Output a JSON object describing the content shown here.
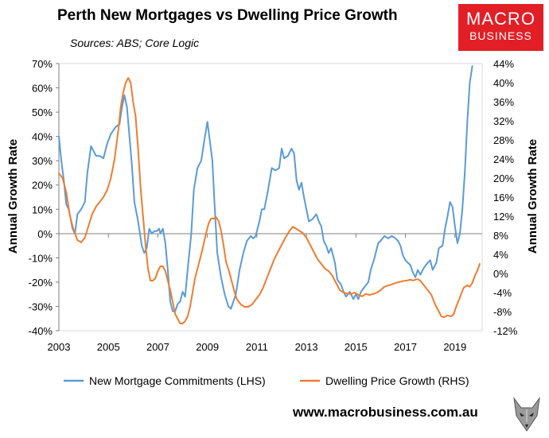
{
  "header": {
    "title": "Perth New Mortgages vs Dwelling Price Growth",
    "subtitle": "Sources: ABS; Core Logic"
  },
  "logo": {
    "top": "MACRO",
    "bottom": "BUSINESS",
    "color": "#e21f26"
  },
  "footer": {
    "website": "www.macrobusiness.com.au",
    "mascot_icon": "fox-icon"
  },
  "chart_data": {
    "type": "line",
    "title": "Perth New Mortgages vs Dwelling Price Growth",
    "x_tick_labels": [
      "2003",
      "2005",
      "2007",
      "2009",
      "2011",
      "2013",
      "2015",
      "2017",
      "2019"
    ],
    "xlim": [
      2003,
      2020.1
    ],
    "left_axis": {
      "label": "Annual Growth Rate",
      "ylim": [
        -40,
        70
      ],
      "ticks": [
        "-40%",
        "-30%",
        "-20%",
        "-10%",
        "0%",
        "10%",
        "20%",
        "30%",
        "40%",
        "50%",
        "60%",
        "70%"
      ]
    },
    "right_axis": {
      "label": "Annual Growth Rate",
      "ylim": [
        -12,
        44
      ],
      "ticks": [
        "-12%",
        "-8%",
        "-4%",
        "0%",
        "4%",
        "8%",
        "12%",
        "16%",
        "20%",
        "24%",
        "28%",
        "32%",
        "36%",
        "40%",
        "44%"
      ]
    },
    "grid": false,
    "legend_position": "bottom",
    "series": [
      {
        "name": "New Mortgage Commitments (LHS)",
        "axis": "left",
        "color": "#5b9bd5",
        "points": [
          [
            2003.0,
            40
          ],
          [
            2003.1,
            30
          ],
          [
            2003.2,
            22
          ],
          [
            2003.3,
            12
          ],
          [
            2003.4,
            10
          ],
          [
            2003.55,
            2
          ],
          [
            2003.65,
            0
          ],
          [
            2003.75,
            8
          ],
          [
            2003.9,
            10
          ],
          [
            2004.05,
            13
          ],
          [
            2004.15,
            25
          ],
          [
            2004.3,
            36
          ],
          [
            2004.5,
            32
          ],
          [
            2004.65,
            32
          ],
          [
            2004.8,
            31
          ],
          [
            2004.95,
            37
          ],
          [
            2005.1,
            41
          ],
          [
            2005.3,
            44
          ],
          [
            2005.45,
            45
          ],
          [
            2005.55,
            52
          ],
          [
            2005.65,
            57
          ],
          [
            2005.75,
            52
          ],
          [
            2005.85,
            40
          ],
          [
            2005.95,
            28
          ],
          [
            2006.05,
            13
          ],
          [
            2006.2,
            5
          ],
          [
            2006.35,
            -5
          ],
          [
            2006.45,
            -8
          ],
          [
            2006.55,
            -6
          ],
          [
            2006.65,
            2
          ],
          [
            2006.75,
            0
          ],
          [
            2006.85,
            1
          ],
          [
            2006.95,
            1
          ],
          [
            2007.05,
            2
          ],
          [
            2007.1,
            0
          ],
          [
            2007.2,
            2
          ],
          [
            2007.3,
            -4
          ],
          [
            2007.4,
            -15
          ],
          [
            2007.5,
            -28
          ],
          [
            2007.6,
            -32
          ],
          [
            2007.7,
            -32
          ],
          [
            2007.8,
            -29
          ],
          [
            2007.9,
            -28
          ],
          [
            2008.0,
            -24
          ],
          [
            2008.1,
            -26
          ],
          [
            2008.2,
            -15
          ],
          [
            2008.35,
            0
          ],
          [
            2008.45,
            18
          ],
          [
            2008.6,
            27
          ],
          [
            2008.75,
            30
          ],
          [
            2008.9,
            40
          ],
          [
            2009.0,
            46
          ],
          [
            2009.1,
            38
          ],
          [
            2009.2,
            30
          ],
          [
            2009.3,
            10
          ],
          [
            2009.4,
            -8
          ],
          [
            2009.55,
            -18
          ],
          [
            2009.7,
            -25
          ],
          [
            2009.85,
            -30
          ],
          [
            2009.95,
            -31
          ],
          [
            2010.05,
            -28
          ],
          [
            2010.15,
            -25
          ],
          [
            2010.3,
            -15
          ],
          [
            2010.45,
            -8
          ],
          [
            2010.6,
            -3
          ],
          [
            2010.75,
            -1
          ],
          [
            2010.85,
            -2
          ],
          [
            2010.95,
            -1
          ],
          [
            2011.1,
            5
          ],
          [
            2011.2,
            10
          ],
          [
            2011.3,
            10
          ],
          [
            2011.45,
            18
          ],
          [
            2011.6,
            27
          ],
          [
            2011.75,
            26
          ],
          [
            2011.9,
            27
          ],
          [
            2012.0,
            35
          ],
          [
            2012.1,
            31
          ],
          [
            2012.25,
            32
          ],
          [
            2012.4,
            35
          ],
          [
            2012.5,
            33
          ],
          [
            2012.6,
            22
          ],
          [
            2012.7,
            18
          ],
          [
            2012.8,
            21
          ],
          [
            2012.9,
            15
          ],
          [
            2013.0,
            10
          ],
          [
            2013.1,
            5
          ],
          [
            2013.25,
            6
          ],
          [
            2013.4,
            8
          ],
          [
            2013.5,
            5
          ],
          [
            2013.6,
            3
          ],
          [
            2013.7,
            -3
          ],
          [
            2013.8,
            -5
          ],
          [
            2013.9,
            -8
          ],
          [
            2014.0,
            -6
          ],
          [
            2014.15,
            -12
          ],
          [
            2014.25,
            -19
          ],
          [
            2014.4,
            -21
          ],
          [
            2014.5,
            -24
          ],
          [
            2014.6,
            -26
          ],
          [
            2014.75,
            -24
          ],
          [
            2014.9,
            -27
          ],
          [
            2015.0,
            -25
          ],
          [
            2015.1,
            -27
          ],
          [
            2015.2,
            -24
          ],
          [
            2015.35,
            -22
          ],
          [
            2015.5,
            -20
          ],
          [
            2015.6,
            -15
          ],
          [
            2015.75,
            -10
          ],
          [
            2015.9,
            -4
          ],
          [
            2016.0,
            -3
          ],
          [
            2016.15,
            -1
          ],
          [
            2016.3,
            -2
          ],
          [
            2016.45,
            -1
          ],
          [
            2016.6,
            -2
          ],
          [
            2016.7,
            -3
          ],
          [
            2016.8,
            -5
          ],
          [
            2016.9,
            -9
          ],
          [
            2017.0,
            -11
          ],
          [
            2017.1,
            -12
          ],
          [
            2017.2,
            -13
          ],
          [
            2017.3,
            -16
          ],
          [
            2017.4,
            -18
          ],
          [
            2017.5,
            -15
          ],
          [
            2017.6,
            -17
          ],
          [
            2017.75,
            -14
          ],
          [
            2017.9,
            -12
          ],
          [
            2018.0,
            -11
          ],
          [
            2018.1,
            -15
          ],
          [
            2018.25,
            -12
          ],
          [
            2018.35,
            -6
          ],
          [
            2018.5,
            -5
          ],
          [
            2018.6,
            2
          ],
          [
            2018.7,
            7
          ],
          [
            2018.8,
            13
          ],
          [
            2018.9,
            11
          ],
          [
            2019.0,
            3
          ],
          [
            2019.1,
            -4
          ],
          [
            2019.2,
            0
          ],
          [
            2019.3,
            10
          ],
          [
            2019.4,
            25
          ],
          [
            2019.5,
            46
          ],
          [
            2019.6,
            62
          ],
          [
            2019.7,
            69
          ]
        ]
      },
      {
        "name": "Dwelling Price Growth (RHS)",
        "axis": "right",
        "color": "#ed7d31",
        "points": [
          [
            2003.0,
            21
          ],
          [
            2003.15,
            20
          ],
          [
            2003.3,
            17
          ],
          [
            2003.45,
            12
          ],
          [
            2003.6,
            9
          ],
          [
            2003.75,
            7
          ],
          [
            2003.9,
            6.5
          ],
          [
            2004.05,
            7.5
          ],
          [
            2004.2,
            10
          ],
          [
            2004.35,
            12.5
          ],
          [
            2004.5,
            14
          ],
          [
            2004.65,
            15
          ],
          [
            2004.8,
            16
          ],
          [
            2004.95,
            17.5
          ],
          [
            2005.1,
            20
          ],
          [
            2005.25,
            24
          ],
          [
            2005.4,
            30
          ],
          [
            2005.5,
            35
          ],
          [
            2005.6,
            38
          ],
          [
            2005.7,
            40
          ],
          [
            2005.8,
            41
          ],
          [
            2005.9,
            40
          ],
          [
            2006.0,
            36
          ],
          [
            2006.1,
            33
          ],
          [
            2006.2,
            26
          ],
          [
            2006.3,
            18
          ],
          [
            2006.4,
            12
          ],
          [
            2006.5,
            6
          ],
          [
            2006.6,
            1
          ],
          [
            2006.7,
            -1.5
          ],
          [
            2006.8,
            -1.5
          ],
          [
            2006.9,
            -1
          ],
          [
            2007.0,
            0.5
          ],
          [
            2007.1,
            1.5
          ],
          [
            2007.2,
            1.5
          ],
          [
            2007.3,
            0.5
          ],
          [
            2007.4,
            -1.5
          ],
          [
            2007.5,
            -3.5
          ],
          [
            2007.6,
            -6
          ],
          [
            2007.7,
            -8.5
          ],
          [
            2007.8,
            -9.5
          ],
          [
            2007.9,
            -10.5
          ],
          [
            2008.0,
            -10.5
          ],
          [
            2008.1,
            -10
          ],
          [
            2008.2,
            -9
          ],
          [
            2008.3,
            -7
          ],
          [
            2008.4,
            -4
          ],
          [
            2008.5,
            -1
          ],
          [
            2008.65,
            2
          ],
          [
            2008.8,
            5
          ],
          [
            2008.95,
            8.5
          ],
          [
            2009.05,
            10.5
          ],
          [
            2009.15,
            11.5
          ],
          [
            2009.25,
            11.5
          ],
          [
            2009.35,
            11.8
          ],
          [
            2009.45,
            11
          ],
          [
            2009.55,
            9
          ],
          [
            2009.65,
            6
          ],
          [
            2009.75,
            2.5
          ],
          [
            2009.9,
            0
          ],
          [
            2010.0,
            -2
          ],
          [
            2010.1,
            -4
          ],
          [
            2010.2,
            -5.5
          ],
          [
            2010.35,
            -6.5
          ],
          [
            2010.5,
            -7
          ],
          [
            2010.65,
            -7
          ],
          [
            2010.8,
            -6.5
          ],
          [
            2010.95,
            -5.5
          ],
          [
            2011.1,
            -4.5
          ],
          [
            2011.25,
            -3
          ],
          [
            2011.4,
            -1
          ],
          [
            2011.55,
            1
          ],
          [
            2011.7,
            3
          ],
          [
            2011.85,
            4.5
          ],
          [
            2012.0,
            6
          ],
          [
            2012.15,
            7.5
          ],
          [
            2012.3,
            8.8
          ],
          [
            2012.45,
            9.8
          ],
          [
            2012.55,
            9.5
          ],
          [
            2012.7,
            9
          ],
          [
            2012.85,
            8.5
          ],
          [
            2013.0,
            7.5
          ],
          [
            2013.15,
            6
          ],
          [
            2013.3,
            4.5
          ],
          [
            2013.45,
            3
          ],
          [
            2013.6,
            2
          ],
          [
            2013.75,
            1
          ],
          [
            2013.9,
            0.5
          ],
          [
            2014.05,
            -0.5
          ],
          [
            2014.2,
            -2
          ],
          [
            2014.35,
            -3.5
          ],
          [
            2014.5,
            -4
          ],
          [
            2014.65,
            -4.2
          ],
          [
            2014.8,
            -4.3
          ],
          [
            2014.95,
            -4
          ],
          [
            2015.1,
            -4.5
          ],
          [
            2015.25,
            -4.8
          ],
          [
            2015.4,
            -4.3
          ],
          [
            2015.55,
            -4.5
          ],
          [
            2015.7,
            -4.3
          ],
          [
            2015.85,
            -4
          ],
          [
            2016.0,
            -3.5
          ],
          [
            2016.15,
            -2.8
          ],
          [
            2016.3,
            -2.5
          ],
          [
            2016.45,
            -2.3
          ],
          [
            2016.6,
            -2
          ],
          [
            2016.75,
            -1.8
          ],
          [
            2016.9,
            -1.6
          ],
          [
            2017.05,
            -1.5
          ],
          [
            2017.2,
            -1.3
          ],
          [
            2017.3,
            -1.5
          ],
          [
            2017.4,
            -1.3
          ],
          [
            2017.5,
            -1.2
          ],
          [
            2017.6,
            -1.5
          ],
          [
            2017.75,
            -2.5
          ],
          [
            2017.9,
            -3.5
          ],
          [
            2018.05,
            -4.5
          ],
          [
            2018.2,
            -6.5
          ],
          [
            2018.35,
            -8
          ],
          [
            2018.45,
            -9
          ],
          [
            2018.55,
            -9.2
          ],
          [
            2018.7,
            -8.8
          ],
          [
            2018.85,
            -9
          ],
          [
            2018.95,
            -8.5
          ],
          [
            2019.05,
            -7
          ],
          [
            2019.2,
            -5
          ],
          [
            2019.35,
            -3
          ],
          [
            2019.5,
            -2.5
          ],
          [
            2019.6,
            -2.8
          ],
          [
            2019.7,
            -2
          ],
          [
            2019.8,
            -0.5
          ],
          [
            2019.9,
            0.5
          ],
          [
            2020.0,
            2
          ]
        ]
      }
    ]
  }
}
